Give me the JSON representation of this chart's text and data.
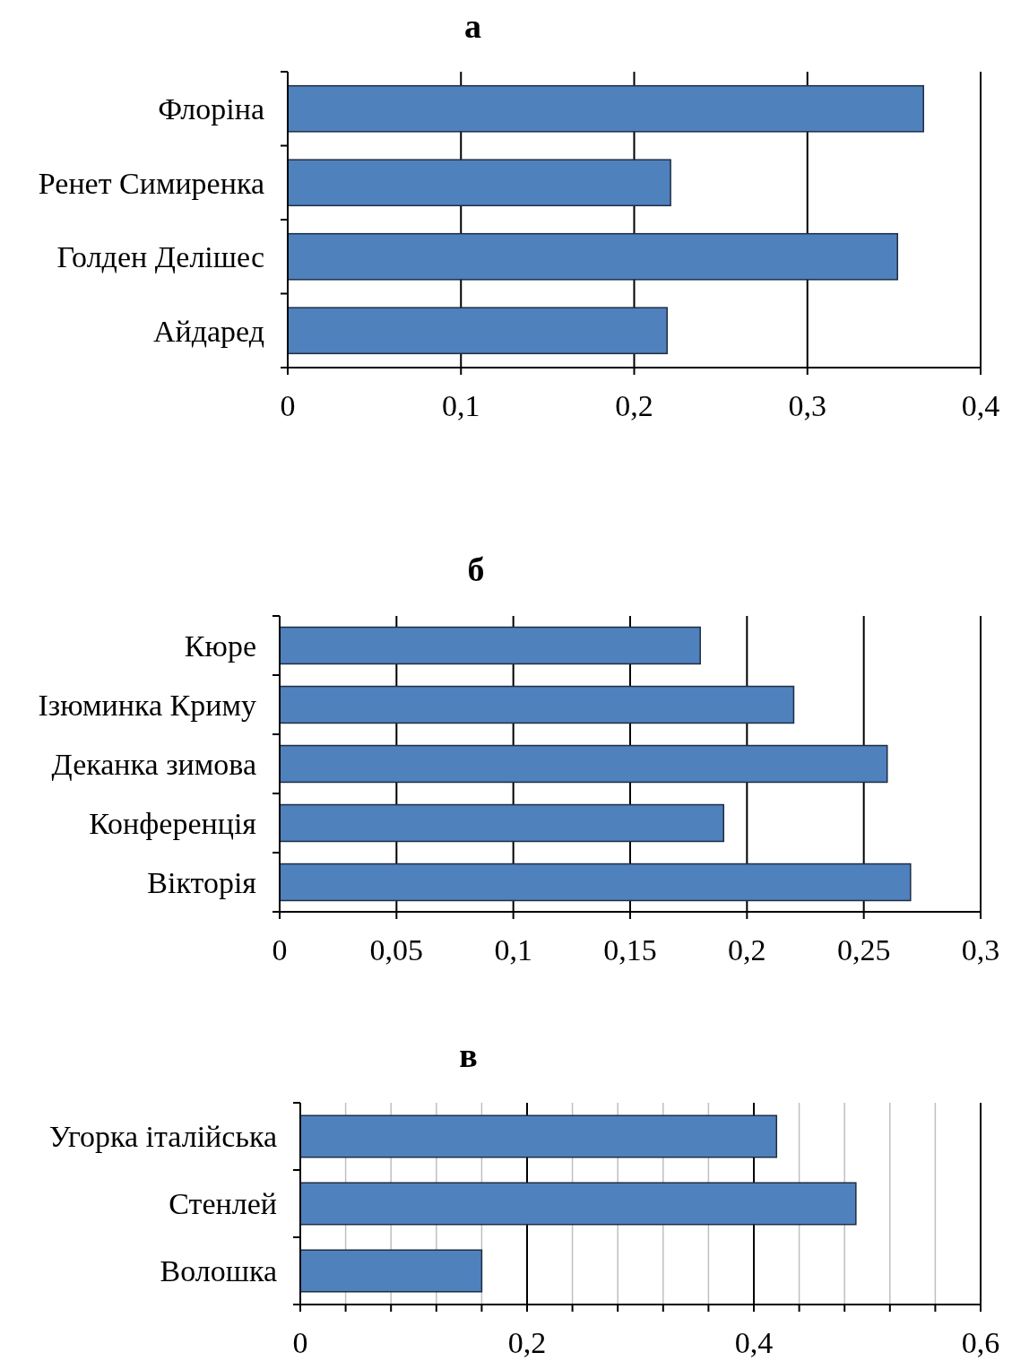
{
  "chart_data": [
    {
      "type": "bar",
      "title": "а",
      "orientation": "horizontal",
      "categories": [
        "Флоріна",
        "Ренет Симиренка",
        "Голден Делішес",
        "Айдаред"
      ],
      "values": [
        0.367,
        0.221,
        0.352,
        0.219
      ],
      "color": "#4f81bd",
      "xlim": [
        0,
        0.4
      ],
      "xticks": [
        {
          "value": 0,
          "label": "0"
        },
        {
          "value": 0.1,
          "label": "0,1"
        },
        {
          "value": 0.2,
          "label": "0,2"
        },
        {
          "value": 0.3,
          "label": "0,3"
        },
        {
          "value": 0.4,
          "label": "0,4"
        }
      ],
      "grid": "x"
    },
    {
      "type": "bar",
      "title": "б",
      "orientation": "horizontal",
      "categories": [
        "Кюре",
        "Ізюминка Криму",
        "Деканка зимова",
        "Конференція",
        "Вікторія"
      ],
      "values": [
        0.18,
        0.22,
        0.26,
        0.19,
        0.27
      ],
      "color": "#4f81bd",
      "xlim": [
        0,
        0.3
      ],
      "xticks": [
        {
          "value": 0,
          "label": "0"
        },
        {
          "value": 0.05,
          "label": "0,05"
        },
        {
          "value": 0.1,
          "label": "0,1"
        },
        {
          "value": 0.15,
          "label": "0,15"
        },
        {
          "value": 0.2,
          "label": "0,2"
        },
        {
          "value": 0.25,
          "label": "0,25"
        },
        {
          "value": 0.3,
          "label": "0,3"
        }
      ],
      "grid": "x"
    },
    {
      "type": "bar",
      "title": "в",
      "orientation": "horizontal",
      "categories": [
        "Угорка італійська",
        "Стенлей",
        "Волошка"
      ],
      "values": [
        0.42,
        0.49,
        0.16
      ],
      "color": "#4f81bd",
      "xlim": [
        0,
        0.6
      ],
      "xticks": [
        {
          "value": 0,
          "label": "0"
        },
        {
          "value": 0.04,
          "label": null
        },
        {
          "value": 0.08,
          "label": null
        },
        {
          "value": 0.12,
          "label": null
        },
        {
          "value": 0.16,
          "label": null
        },
        {
          "value": 0.2,
          "label": "0,2"
        },
        {
          "value": 0.24,
          "label": null
        },
        {
          "value": 0.28,
          "label": null
        },
        {
          "value": 0.32,
          "label": null
        },
        {
          "value": 0.36,
          "label": null
        },
        {
          "value": 0.4,
          "label": "0,4"
        },
        {
          "value": 0.44,
          "label": null
        },
        {
          "value": 0.48,
          "label": null
        },
        {
          "value": 0.52,
          "label": null
        },
        {
          "value": 0.56,
          "label": null
        },
        {
          "value": 0.6,
          "label": "0,6"
        }
      ],
      "grid": "x"
    }
  ]
}
